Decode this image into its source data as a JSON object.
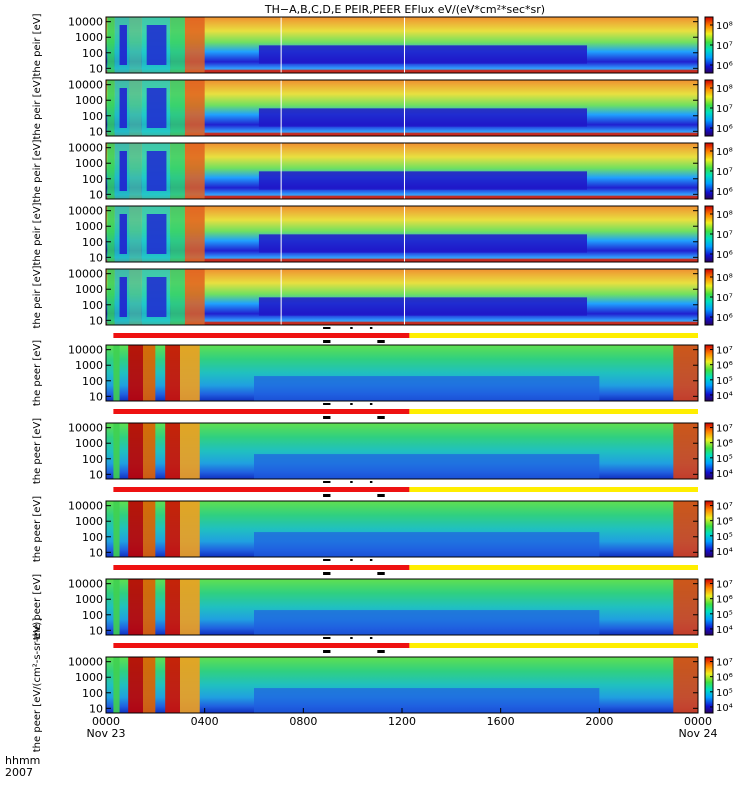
{
  "chart_data": {
    "type": "heatmap",
    "title": "TH−A,B,C,D,E PEIR,PEER EFlux eV/(eV*cm²*sec*sr)",
    "x_axis": {
      "tick_labels": [
        "0000",
        "0400",
        "0800",
        "1200",
        "1600",
        "2000",
        "0000"
      ],
      "tick_hours": [
        0,
        4,
        8,
        12,
        16,
        20,
        24
      ],
      "date_labels": [
        "Nov 23",
        "Nov 24"
      ],
      "corner_labels": [
        "hhmm",
        "2007"
      ]
    },
    "y_axis": {
      "scale": "log",
      "ylim": [
        5,
        20000
      ],
      "tick_labels": [
        "10",
        "100",
        "1000",
        "10000"
      ],
      "tick_values": [
        10,
        100,
        1000,
        10000
      ]
    },
    "panels": [
      {
        "ylabel": "the peir [eV]",
        "colorbar": {
          "scale": "log",
          "tick_labels": [
            "10⁸",
            "10⁷",
            "10⁶"
          ],
          "tick_values": [
            8,
            7,
            6
          ],
          "range": [
            5.6,
            8.4
          ]
        }
      },
      {
        "ylabel": "the peir [eV]",
        "colorbar": {
          "scale": "log",
          "tick_labels": [
            "10⁸",
            "10⁷",
            "10⁶"
          ],
          "tick_values": [
            8,
            7,
            6
          ],
          "range": [
            5.6,
            8.4
          ]
        }
      },
      {
        "ylabel": "the peir [eV]",
        "colorbar": {
          "scale": "log",
          "tick_labels": [
            "10⁸",
            "10⁷",
            "10⁶"
          ],
          "tick_values": [
            8,
            7,
            6
          ],
          "range": [
            5.6,
            8.4
          ]
        }
      },
      {
        "ylabel": "the peir [eV]",
        "colorbar": {
          "scale": "log",
          "tick_labels": [
            "10⁸",
            "10⁷",
            "10⁶"
          ],
          "tick_values": [
            8,
            7,
            6
          ],
          "range": [
            5.6,
            8.4
          ]
        }
      },
      {
        "ylabel": "the peir [eV]",
        "colorbar": {
          "scale": "log",
          "tick_labels": [
            "10⁸",
            "10⁷",
            "10⁶"
          ],
          "tick_values": [
            8,
            7,
            6
          ],
          "range": [
            5.6,
            8.4
          ]
        }
      },
      {
        "ylabel": "the peer [eV]",
        "colorbar": {
          "scale": "log",
          "tick_labels": [
            "10⁷",
            "10⁶",
            "10⁵",
            "10⁴"
          ],
          "tick_values": [
            7,
            6,
            5,
            4
          ],
          "range": [
            3.6,
            7.3
          ]
        }
      },
      {
        "ylabel": "the peer [eV]",
        "colorbar": {
          "scale": "log",
          "tick_labels": [
            "10⁷",
            "10⁶",
            "10⁵",
            "10⁴"
          ],
          "tick_values": [
            7,
            6,
            5,
            4
          ],
          "range": [
            3.6,
            7.3
          ]
        }
      },
      {
        "ylabel": "the peer [eV]",
        "colorbar": {
          "scale": "log",
          "tick_labels": [
            "10⁷",
            "10⁶",
            "10⁵",
            "10⁴"
          ],
          "tick_values": [
            7,
            6,
            5,
            4
          ],
          "range": [
            3.6,
            7.3
          ]
        }
      },
      {
        "ylabel": "the peer [eV]",
        "colorbar": {
          "scale": "log",
          "tick_labels": [
            "10⁷",
            "10⁶",
            "10⁵",
            "10⁴"
          ],
          "tick_values": [
            7,
            6,
            5,
            4
          ],
          "range": [
            3.6,
            7.3
          ]
        }
      },
      {
        "ylabel": "the peer [eV/(cm²-s-sr-eV)]",
        "colorbar": {
          "scale": "log",
          "tick_labels": [
            "10⁷",
            "10⁶",
            "10⁵",
            "10⁴"
          ],
          "tick_values": [
            7,
            6,
            5,
            4
          ],
          "range": [
            3.6,
            7.3
          ]
        }
      }
    ],
    "mode_bar": {
      "segments": [
        {
          "from_hour": 0.3,
          "to_hour": 12.3,
          "color": "#ee1111"
        },
        {
          "from_hour": 12.3,
          "to_hour": 24,
          "color": "#ffee00"
        }
      ]
    },
    "colors": {
      "mode_red": "#ee1111",
      "mode_yellow": "#ffee00"
    }
  }
}
